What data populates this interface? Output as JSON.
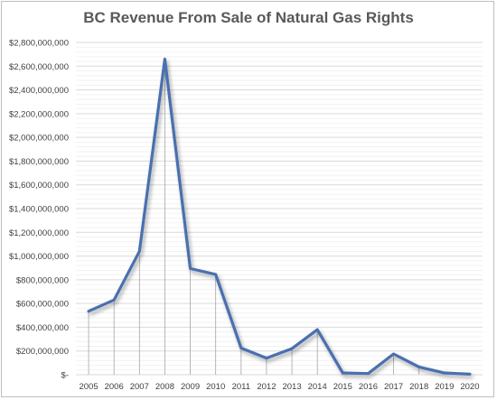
{
  "chart_data": {
    "type": "line",
    "title": "BC Revenue From Sale of Natural Gas Rights",
    "xlabel": "",
    "ylabel": "",
    "categories": [
      "2005",
      "2006",
      "2007",
      "2008",
      "2009",
      "2010",
      "2011",
      "2012",
      "2013",
      "2014",
      "2015",
      "2016",
      "2017",
      "2018",
      "2019",
      "2020"
    ],
    "series": [
      {
        "values": [
          535000000,
          630000000,
          1040000000,
          2660000000,
          895000000,
          845000000,
          225000000,
          140000000,
          220000000,
          380000000,
          15000000,
          10000000,
          175000000,
          65000000,
          15000000,
          5000000
        ]
      }
    ],
    "ylim": [
      0,
      2800000000
    ],
    "y_ticks": [
      0,
      200000000,
      400000000,
      600000000,
      800000000,
      1000000000,
      1200000000,
      1400000000,
      1600000000,
      1800000000,
      2000000000,
      2200000000,
      2400000000,
      2600000000,
      2800000000
    ],
    "y_tick_labels": [
      "$-",
      "$200,000,000",
      "$400,000,000",
      "$600,000,000",
      "$800,000,000",
      "$1,000,000,000",
      "$1,200,000,000",
      "$1,400,000,000",
      "$1,600,000,000",
      "$1,800,000,000",
      "$2,000,000,000",
      "$2,200,000,000",
      "$2,400,000,000",
      "$2,600,000,000",
      "$2,800,000,000"
    ],
    "grid": true,
    "drop_lines": true,
    "colors": {
      "line": "#4a6fb0",
      "grid": "#d9d9d9",
      "drop": "#a6a6a6"
    }
  }
}
